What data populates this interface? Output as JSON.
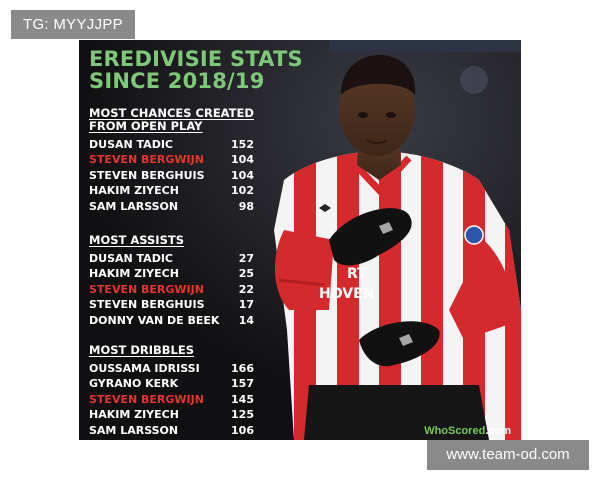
{
  "badges": {
    "top_left": "TG: MYYJJPP",
    "bottom_right": "www.team-od.com"
  },
  "graphic": {
    "title_line1": "EREDIVISIE STATS",
    "title_line2": "SINCE 2018/19",
    "sections": [
      {
        "title_line1": "MOST CHANCES CREATED",
        "title_line2": "FROM OPEN PLAY",
        "rows": [
          {
            "name": "DUSAN TADIC",
            "value": "152",
            "highlight": false
          },
          {
            "name": "STEVEN BERGWIJN",
            "value": "104",
            "highlight": true
          },
          {
            "name": "STEVEN BERGHUIS",
            "value": "104",
            "highlight": false
          },
          {
            "name": "HAKIM ZIYECH",
            "value": "102",
            "highlight": false
          },
          {
            "name": "SAM LARSSON",
            "value": "98",
            "highlight": false
          }
        ]
      },
      {
        "title_line1": "MOST ASSISTS",
        "title_line2": "",
        "rows": [
          {
            "name": "DUSAN TADIC",
            "value": "27",
            "highlight": false
          },
          {
            "name": "HAKIM ZIYECH",
            "value": "25",
            "highlight": false
          },
          {
            "name": "STEVEN BERGWIJN",
            "value": "22",
            "highlight": true
          },
          {
            "name": "STEVEN BERGHUIS",
            "value": "17",
            "highlight": false
          },
          {
            "name": "DONNY VAN DE BEEK",
            "value": "14",
            "highlight": false
          }
        ]
      },
      {
        "title_line1": "MOST DRIBBLES",
        "title_line2": "",
        "rows": [
          {
            "name": "OUSSAMA IDRISSI",
            "value": "166",
            "highlight": false
          },
          {
            "name": "GYRANO KERK",
            "value": "157",
            "highlight": false
          },
          {
            "name": "STEVEN BERGWIJN",
            "value": "145",
            "highlight": true
          },
          {
            "name": "HAKIM ZIYECH",
            "value": "125",
            "highlight": false
          },
          {
            "name": "SAM LARSSON",
            "value": "106",
            "highlight": false
          }
        ]
      }
    ],
    "watermark_brand": "WhoScored",
    "watermark_tld": ".com",
    "shirt_text_line1": "RT",
    "shirt_text_line2": "HOVEN",
    "colors": {
      "title_green": "#7fc87a",
      "highlight_red": "#e8332f",
      "shirt_red": "#d42a2e",
      "shirt_white": "#f4f4f4",
      "background": "#121214"
    },
    "icons": [
      "player-photo",
      "whoscored-logo-icon"
    ]
  }
}
